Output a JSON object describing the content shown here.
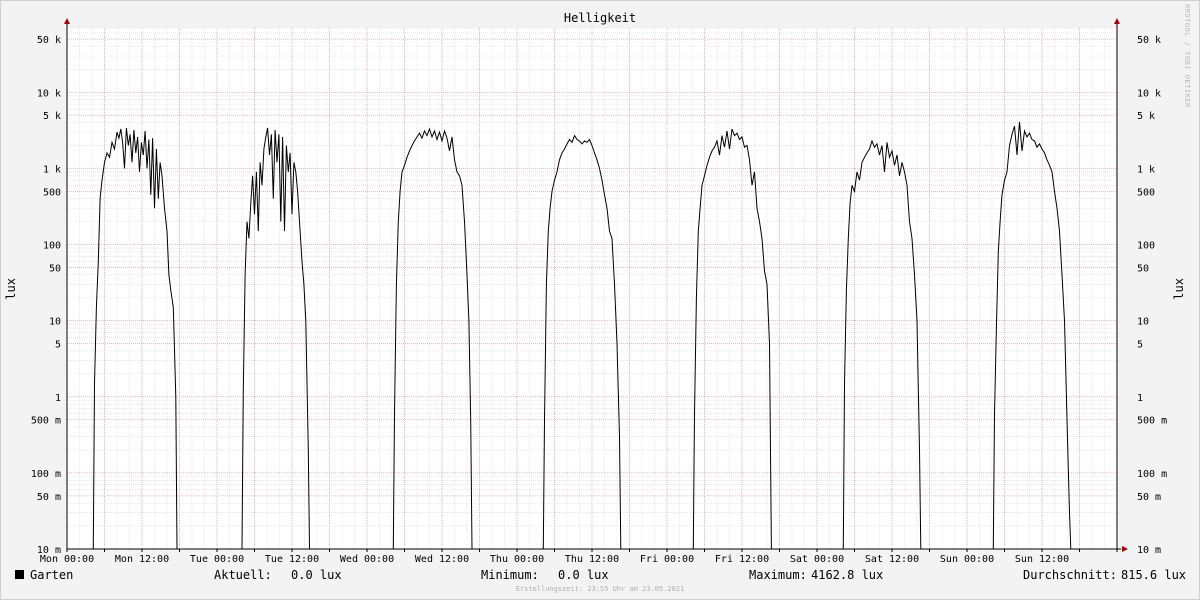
{
  "title": "Helligkeit",
  "watermark": "RRDTOOL / TOBI OETIKER",
  "footer": "Erstellungszeit: 23:55 Uhr am 23.05.2021",
  "legend": {
    "series_name": "Garten",
    "current_label": "Aktuell:",
    "current_value": "0.0 lux",
    "min_label": "Minimum:",
    "min_value": "0.0 lux",
    "max_label": "Maximum:",
    "max_value": "4162.8 lux",
    "avg_label": "Durchschnitt:",
    "avg_value": "815.6 lux"
  },
  "colors": {
    "background": "#f3f3f3",
    "canvas": "#ffffff",
    "major_grid": "#e6a0a8",
    "minor_grid": "#d8d8d8",
    "series": "#000000",
    "axis_arrow": "#aa0000"
  },
  "chart_data": {
    "type": "line",
    "title": "Helligkeit",
    "ylabel": "lux",
    "ylabel_right": "lux",
    "y_scale": "log",
    "ylim": [
      0.01,
      70000
    ],
    "grid": true,
    "x_ticks": [
      "Mon 00:00",
      "Mon 12:00",
      "Tue 00:00",
      "Tue 12:00",
      "Wed 00:00",
      "Wed 12:00",
      "Thu 00:00",
      "Thu 12:00",
      "Fri 00:00",
      "Fri 12:00",
      "Sat 00:00",
      "Sat 12:00",
      "Sun 00:00",
      "Sun 12:00"
    ],
    "y_ticks": [
      {
        "value": 0.01,
        "label": "10 m"
      },
      {
        "value": 0.05,
        "label": "50 m"
      },
      {
        "value": 0.1,
        "label": "100 m"
      },
      {
        "value": 0.5,
        "label": "500 m"
      },
      {
        "value": 1,
        "label": "1"
      },
      {
        "value": 5,
        "label": "5"
      },
      {
        "value": 10,
        "label": "10"
      },
      {
        "value": 50,
        "label": "50"
      },
      {
        "value": 100,
        "label": "100"
      },
      {
        "value": 500,
        "label": "500"
      },
      {
        "value": 1000,
        "label": "1 k"
      },
      {
        "value": 5000,
        "label": "5 k"
      },
      {
        "value": 10000,
        "label": "10 k"
      },
      {
        "value": 50000,
        "label": "50 k"
      }
    ],
    "x_unit": "hours since Mon 00:00",
    "series": [
      {
        "name": "Garten",
        "points": [
          [
            0,
            0.01
          ],
          [
            4.2,
            0.01
          ],
          [
            4.4,
            1.5
          ],
          [
            4.7,
            15
          ],
          [
            5.0,
            60
          ],
          [
            5.3,
            400
          ],
          [
            5.6,
            700
          ],
          [
            6.0,
            1200
          ],
          [
            6.4,
            1600
          ],
          [
            6.8,
            1400
          ],
          [
            7.2,
            2200
          ],
          [
            7.6,
            1800
          ],
          [
            8.0,
            3000
          ],
          [
            8.3,
            2500
          ],
          [
            8.6,
            3300
          ],
          [
            8.9,
            2200
          ],
          [
            9.2,
            1000
          ],
          [
            9.5,
            3400
          ],
          [
            9.8,
            2000
          ],
          [
            10.1,
            2800
          ],
          [
            10.4,
            1200
          ],
          [
            10.7,
            3200
          ],
          [
            11.0,
            1600
          ],
          [
            11.3,
            2600
          ],
          [
            11.6,
            900
          ],
          [
            11.9,
            2200
          ],
          [
            12.2,
            1500
          ],
          [
            12.5,
            3100
          ],
          [
            12.8,
            1000
          ],
          [
            13.1,
            2400
          ],
          [
            13.4,
            450
          ],
          [
            13.7,
            2500
          ],
          [
            14.0,
            300
          ],
          [
            14.3,
            1800
          ],
          [
            14.6,
            400
          ],
          [
            14.9,
            1200
          ],
          [
            15.2,
            800
          ],
          [
            15.6,
            300
          ],
          [
            16.0,
            150
          ],
          [
            16.3,
            40
          ],
          [
            16.6,
            25
          ],
          [
            17.0,
            15
          ],
          [
            17.4,
            1
          ],
          [
            17.6,
            0.01
          ],
          [
            24,
            0.01
          ],
          [
            28.0,
            0.01
          ],
          [
            28.2,
            1.2
          ],
          [
            28.5,
            40
          ],
          [
            28.8,
            200
          ],
          [
            29.1,
            120
          ],
          [
            29.4,
            350
          ],
          [
            29.7,
            800
          ],
          [
            30.0,
            250
          ],
          [
            30.3,
            900
          ],
          [
            30.6,
            150
          ],
          [
            30.9,
            1200
          ],
          [
            31.2,
            600
          ],
          [
            31.5,
            1800
          ],
          [
            31.8,
            2600
          ],
          [
            32.1,
            3400
          ],
          [
            32.4,
            1500
          ],
          [
            32.7,
            2800
          ],
          [
            33.0,
            400
          ],
          [
            33.3,
            3200
          ],
          [
            33.6,
            1200
          ],
          [
            33.9,
            2800
          ],
          [
            34.2,
            200
          ],
          [
            34.5,
            2600
          ],
          [
            34.8,
            150
          ],
          [
            35.1,
            2000
          ],
          [
            35.4,
            900
          ],
          [
            35.7,
            1600
          ],
          [
            36.0,
            250
          ],
          [
            36.3,
            1200
          ],
          [
            36.6,
            900
          ],
          [
            36.9,
            500
          ],
          [
            37.2,
            200
          ],
          [
            37.6,
            60
          ],
          [
            37.9,
            30
          ],
          [
            38.2,
            10
          ],
          [
            38.6,
            0.2
          ],
          [
            38.8,
            0.01
          ],
          [
            48,
            0.01
          ],
          [
            52.2,
            0.01
          ],
          [
            52.4,
            0.6
          ],
          [
            52.7,
            30
          ],
          [
            53.0,
            200
          ],
          [
            53.3,
            500
          ],
          [
            53.6,
            900
          ],
          [
            54.0,
            1100
          ],
          [
            54.4,
            1400
          ],
          [
            54.8,
            1700
          ],
          [
            55.2,
            2000
          ],
          [
            55.6,
            2300
          ],
          [
            56.0,
            2600
          ],
          [
            56.4,
            2900
          ],
          [
            56.8,
            2500
          ],
          [
            57.2,
            3100
          ],
          [
            57.6,
            2700
          ],
          [
            58.0,
            3300
          ],
          [
            58.4,
            2600
          ],
          [
            58.8,
            3100
          ],
          [
            59.2,
            2400
          ],
          [
            59.6,
            3000
          ],
          [
            60.0,
            2300
          ],
          [
            60.4,
            3100
          ],
          [
            60.8,
            2500
          ],
          [
            61.2,
            1700
          ],
          [
            61.6,
            2600
          ],
          [
            62.0,
            1300
          ],
          [
            62.4,
            900
          ],
          [
            62.8,
            800
          ],
          [
            63.2,
            600
          ],
          [
            63.6,
            200
          ],
          [
            64.0,
            40
          ],
          [
            64.3,
            10
          ],
          [
            64.6,
            0.5
          ],
          [
            64.8,
            0.01
          ],
          [
            72,
            0.01
          ],
          [
            76.2,
            0.01
          ],
          [
            76.4,
            0.5
          ],
          [
            76.7,
            30
          ],
          [
            77.0,
            150
          ],
          [
            77.3,
            300
          ],
          [
            77.6,
            500
          ],
          [
            78.0,
            700
          ],
          [
            78.4,
            900
          ],
          [
            78.8,
            1300
          ],
          [
            79.2,
            1600
          ],
          [
            79.6,
            1800
          ],
          [
            80.0,
            2100
          ],
          [
            80.4,
            2400
          ],
          [
            80.8,
            2200
          ],
          [
            81.2,
            2700
          ],
          [
            81.6,
            2400
          ],
          [
            82.0,
            2300
          ],
          [
            82.4,
            2100
          ],
          [
            82.8,
            2300
          ],
          [
            83.2,
            2200
          ],
          [
            83.6,
            2400
          ],
          [
            84.0,
            2000
          ],
          [
            84.4,
            1600
          ],
          [
            84.8,
            1300
          ],
          [
            85.2,
            1000
          ],
          [
            85.6,
            700
          ],
          [
            86.0,
            450
          ],
          [
            86.4,
            300
          ],
          [
            86.8,
            150
          ],
          [
            87.2,
            120
          ],
          [
            87.6,
            30
          ],
          [
            88.0,
            5
          ],
          [
            88.4,
            0.3
          ],
          [
            88.6,
            0.01
          ],
          [
            96,
            0.01
          ],
          [
            100.2,
            0.01
          ],
          [
            100.4,
            0.6
          ],
          [
            100.7,
            20
          ],
          [
            101.0,
            150
          ],
          [
            101.3,
            300
          ],
          [
            101.6,
            600
          ],
          [
            102.0,
            800
          ],
          [
            102.4,
            1100
          ],
          [
            102.8,
            1400
          ],
          [
            103.2,
            1700
          ],
          [
            103.6,
            1900
          ],
          [
            104.0,
            2300
          ],
          [
            104.4,
            1500
          ],
          [
            104.8,
            2700
          ],
          [
            105.2,
            1900
          ],
          [
            105.6,
            3100
          ],
          [
            106.0,
            1800
          ],
          [
            106.4,
            3300
          ],
          [
            106.8,
            2700
          ],
          [
            107.2,
            2900
          ],
          [
            107.6,
            2400
          ],
          [
            108.0,
            2600
          ],
          [
            108.4,
            1900
          ],
          [
            108.8,
            2000
          ],
          [
            109.2,
            1300
          ],
          [
            109.6,
            600
          ],
          [
            110.0,
            900
          ],
          [
            110.4,
            300
          ],
          [
            110.8,
            200
          ],
          [
            111.2,
            120
          ],
          [
            111.6,
            45
          ],
          [
            112.0,
            30
          ],
          [
            112.4,
            5
          ],
          [
            112.7,
            0.01
          ],
          [
            120,
            0.01
          ],
          [
            124.2,
            0.01
          ],
          [
            124.4,
            1.5
          ],
          [
            124.7,
            25
          ],
          [
            125.0,
            120
          ],
          [
            125.3,
            350
          ],
          [
            125.6,
            600
          ],
          [
            126.0,
            500
          ],
          [
            126.4,
            900
          ],
          [
            126.8,
            700
          ],
          [
            127.2,
            1200
          ],
          [
            127.6,
            1400
          ],
          [
            128.0,
            1600
          ],
          [
            128.4,
            1800
          ],
          [
            128.8,
            2300
          ],
          [
            129.2,
            1900
          ],
          [
            129.6,
            2100
          ],
          [
            130.0,
            1500
          ],
          [
            130.4,
            2000
          ],
          [
            130.8,
            900
          ],
          [
            131.2,
            2200
          ],
          [
            131.6,
            1400
          ],
          [
            132.0,
            1700
          ],
          [
            132.4,
            1100
          ],
          [
            132.8,
            1500
          ],
          [
            133.2,
            800
          ],
          [
            133.6,
            1200
          ],
          [
            134.0,
            900
          ],
          [
            134.4,
            600
          ],
          [
            134.8,
            200
          ],
          [
            135.2,
            120
          ],
          [
            135.6,
            40
          ],
          [
            136.0,
            10
          ],
          [
            136.4,
            0.2
          ],
          [
            136.6,
            0.01
          ],
          [
            144,
            0.01
          ],
          [
            148.2,
            0.01
          ],
          [
            148.4,
            0.6
          ],
          [
            148.7,
            8
          ],
          [
            149.0,
            80
          ],
          [
            149.3,
            200
          ],
          [
            149.6,
            450
          ],
          [
            150.0,
            700
          ],
          [
            150.4,
            900
          ],
          [
            150.8,
            2000
          ],
          [
            151.2,
            2800
          ],
          [
            151.6,
            3600
          ],
          [
            152.0,
            1500
          ],
          [
            152.4,
            4100
          ],
          [
            152.8,
            1700
          ],
          [
            153.2,
            3100
          ],
          [
            153.6,
            2600
          ],
          [
            154.0,
            2900
          ],
          [
            154.4,
            2400
          ],
          [
            154.8,
            2300
          ],
          [
            155.2,
            1900
          ],
          [
            155.6,
            2100
          ],
          [
            156.0,
            1800
          ],
          [
            156.4,
            1600
          ],
          [
            156.8,
            1300
          ],
          [
            157.2,
            1100
          ],
          [
            157.6,
            900
          ],
          [
            158.0,
            500
          ],
          [
            158.4,
            300
          ],
          [
            158.8,
            150
          ],
          [
            159.2,
            40
          ],
          [
            159.6,
            10
          ],
          [
            160.0,
            0.5
          ],
          [
            160.4,
            0.03
          ],
          [
            160.6,
            0.01
          ],
          [
            168,
            0.01
          ]
        ]
      }
    ]
  }
}
